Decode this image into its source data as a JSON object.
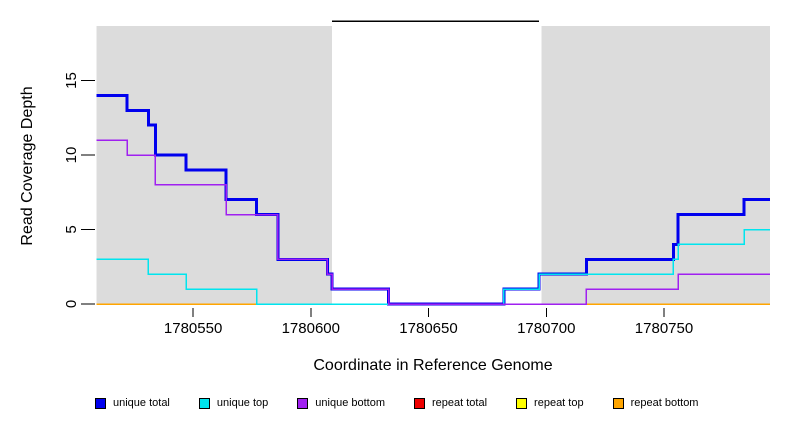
{
  "chart_data": {
    "type": "line",
    "subtype": "step",
    "title": "",
    "xlabel": "Coordinate in Reference Genome",
    "ylabel": "Read Coverage Depth",
    "xlim": [
      1780509,
      1780795
    ],
    "ylim": [
      0,
      19.2
    ],
    "x_ticks": [
      1780550,
      1780600,
      1780650,
      1780700,
      1780750
    ],
    "y_ticks": [
      0,
      5,
      10,
      15
    ],
    "grid": false,
    "legend_position": "bottom",
    "shade_color": "#DCDCDC",
    "shaded_regions": [
      {
        "from": 1780509,
        "to": 1780609
      },
      {
        "from": 1780698,
        "to": 1780795
      }
    ],
    "repeat_region_bar": {
      "from": 1780609,
      "to": 1780697
    },
    "series": [
      {
        "name": "repeat total",
        "color": "#EE0000",
        "line_width": 1.5,
        "points": [
          [
            1780509,
            0
          ]
        ]
      },
      {
        "name": "repeat top",
        "color": "#FFFF00",
        "line_width": 1.5,
        "points": [
          [
            1780509,
            0
          ]
        ]
      },
      {
        "name": "repeat bottom",
        "color": "#FFA500",
        "line_width": 1.5,
        "points": [
          [
            1780509,
            0
          ]
        ]
      },
      {
        "name": "unique total",
        "color": "#0000EE",
        "line_width": 3,
        "points": [
          [
            1780509,
            14
          ],
          [
            1780522,
            13
          ],
          [
            1780531,
            12
          ],
          [
            1780534,
            10
          ],
          [
            1780547,
            9
          ],
          [
            1780564,
            7
          ],
          [
            1780577,
            6
          ],
          [
            1780586,
            3
          ],
          [
            1780607,
            2
          ],
          [
            1780609,
            1
          ],
          [
            1780633,
            0
          ],
          [
            1780682,
            1
          ],
          [
            1780697,
            2
          ],
          [
            1780717,
            3
          ],
          [
            1780754,
            4
          ],
          [
            1780756,
            6
          ],
          [
            1780784,
            7
          ]
        ]
      },
      {
        "name": "unique top",
        "color": "#00E5EE",
        "line_width": 1.5,
        "points": [
          [
            1780509,
            3
          ],
          [
            1780531,
            2
          ],
          [
            1780547,
            1
          ],
          [
            1780577,
            0
          ],
          [
            1780682,
            1
          ],
          [
            1780697,
            2
          ],
          [
            1780754,
            3
          ],
          [
            1780756,
            4
          ],
          [
            1780784,
            5
          ]
        ]
      },
      {
        "name": "unique bottom",
        "color": "#A020F0",
        "line_width": 1.5,
        "points": [
          [
            1780509,
            11
          ],
          [
            1780522,
            10
          ],
          [
            1780534,
            8
          ],
          [
            1780564,
            6
          ],
          [
            1780586,
            3
          ],
          [
            1780607,
            2
          ],
          [
            1780609,
            1
          ],
          [
            1780633,
            0
          ],
          [
            1780717,
            1
          ],
          [
            1780756,
            2
          ]
        ]
      }
    ],
    "legend": [
      {
        "label": "unique total",
        "color": "#0000EE"
      },
      {
        "label": "unique top",
        "color": "#00E5EE"
      },
      {
        "label": "unique bottom",
        "color": "#A020F0"
      },
      {
        "label": "repeat total",
        "color": "#EE0000"
      },
      {
        "label": "repeat top",
        "color": "#FFFF00"
      },
      {
        "label": "repeat bottom",
        "color": "#FFA500"
      }
    ]
  }
}
